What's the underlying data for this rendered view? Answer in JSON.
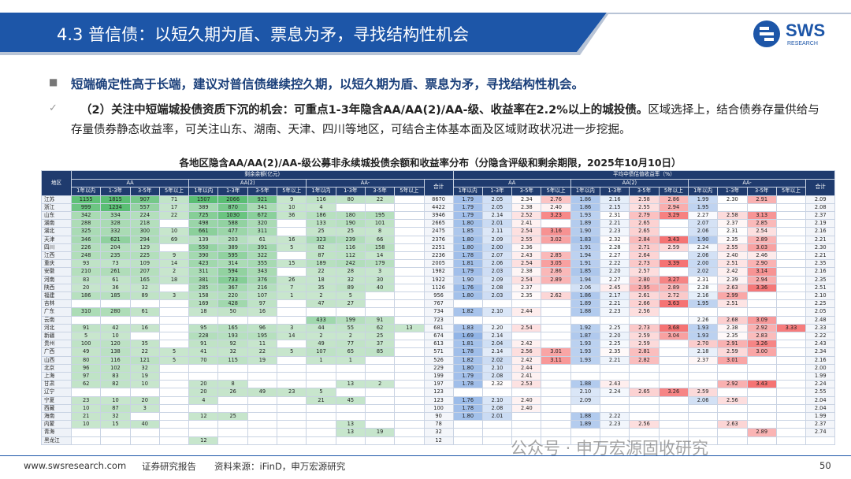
{
  "header": {
    "title": "4.3 普信债：以短久期为盾、票息为矛，寻找结构性机会",
    "logo": "SWS",
    "logo_sub": "RESEARCH"
  },
  "bullets": {
    "main": "短端确定性高于长端，建议对普信债继续控久期，以短久期为盾、票息为矛，寻找结构性机会。",
    "detail_bold": "（2）关注中短端城投债资质下沉的机会：可重点1-3年隐含AA/AA(2)/AA-级、收益率在2.2%以上的城投债。",
    "detail": "区域选择上，结合债券存量供给与存量债券静态收益率，可关注山东、湖南、天津、四川等地区，可结合主体基本面及区域财政状况进一步挖掘。"
  },
  "table": {
    "title": "各地区隐含AA/AA(2)/AA-级公募非永续城投债余额和收益率分布（分隐含评级和剩余期限，2025年10月10日）",
    "region_header": "地区",
    "balance_header": "剩余余额(亿元)",
    "yield_header": "平均中债估值收益率（%）",
    "total_header": "合计",
    "groups": [
      "AA",
      "AA(2)",
      "AA-"
    ],
    "terms": [
      "1年以内",
      "1-3年",
      "3-5年",
      "5年以上"
    ],
    "rows": [
      [
        "江苏",
        "1155",
        "1815",
        "907",
        "71",
        "1507",
        "2066",
        "921",
        "9",
        "116",
        "80",
        "22",
        null,
        "8670",
        "1.79",
        "2.05",
        "2.34",
        "2.76",
        "1.86",
        "2.16",
        "2.58",
        "2.86",
        "1.99",
        "2.30",
        "2.91",
        null,
        "2.09"
      ],
      [
        "浙江",
        "999",
        "1234",
        "557",
        "17",
        "389",
        "870",
        "341",
        "10",
        "4",
        null,
        null,
        null,
        "4422",
        "1.79",
        "2.05",
        "2.38",
        "2.40",
        "1.86",
        "2.15",
        "2.55",
        "2.94",
        "1.95",
        null,
        null,
        null,
        "2.08"
      ],
      [
        "山东",
        "342",
        "334",
        "224",
        "22",
        "725",
        "1030",
        "672",
        "36",
        "186",
        "180",
        "195",
        null,
        "3946",
        "1.79",
        "2.14",
        "2.52",
        "3.23",
        "1.93",
        "2.31",
        "2.79",
        "3.29",
        "2.27",
        "2.58",
        "3.13",
        null,
        "2.37"
      ],
      [
        "湖南",
        "288",
        "328",
        "218",
        null,
        "498",
        "588",
        "320",
        null,
        "133",
        "190",
        "101",
        null,
        "2665",
        "1.80",
        "2.01",
        "2.41",
        null,
        "1.89",
        "2.21",
        "2.65",
        null,
        "2.07",
        "2.37",
        "2.85",
        null,
        "2.19"
      ],
      [
        "湖北",
        "325",
        "332",
        "300",
        "10",
        "661",
        "477",
        "311",
        null,
        "25",
        "25",
        "8",
        null,
        "2475",
        "1.85",
        "2.11",
        "2.54",
        "3.16",
        "1.90",
        "2.23",
        "2.65",
        null,
        "2.06",
        "2.31",
        "2.54",
        null,
        "2.16"
      ],
      [
        "天津",
        "346",
        "621",
        "294",
        "69",
        "139",
        "203",
        "61",
        "16",
        "323",
        "239",
        "66",
        null,
        "2376",
        "1.80",
        "2.09",
        "2.55",
        "3.02",
        "1.83",
        "2.32",
        "2.84",
        "3.43",
        "1.90",
        "2.35",
        "2.89",
        null,
        "2.21"
      ],
      [
        "四川",
        "226",
        "204",
        "129",
        null,
        "550",
        "389",
        "391",
        "5",
        "82",
        "116",
        "158",
        null,
        "2251",
        "1.80",
        "2.00",
        "2.36",
        null,
        "1.91",
        "2.28",
        "2.71",
        "2.59",
        "2.24",
        "2.55",
        "3.03",
        null,
        "2.30"
      ],
      [
        "江西",
        "248",
        "235",
        "225",
        "9",
        "390",
        "595",
        "322",
        null,
        "87",
        "112",
        "14",
        null,
        "2236",
        "1.78",
        "2.07",
        "2.43",
        "2.85",
        "1.94",
        "2.27",
        "2.64",
        null,
        "2.06",
        "2.40",
        "2.46",
        null,
        "2.21"
      ],
      [
        "重庆",
        "93",
        "73",
        "109",
        "14",
        "423",
        "314",
        "355",
        "15",
        "189",
        "242",
        "179",
        null,
        "2005",
        "1.81",
        "2.06",
        "2.54",
        "3.05",
        "1.91",
        "2.22",
        "2.73",
        "3.39",
        "2.00",
        "2.51",
        "2.90",
        null,
        "2.35"
      ],
      [
        "安徽",
        "210",
        "261",
        "207",
        "2",
        "311",
        "594",
        "343",
        null,
        "22",
        "28",
        "3",
        null,
        "1982",
        "1.79",
        "2.03",
        "2.38",
        "2.86",
        "1.85",
        "2.20",
        "2.57",
        null,
        "2.02",
        "2.42",
        "3.14",
        null,
        "2.16"
      ],
      [
        "河南",
        "83",
        "61",
        "165",
        "18",
        "381",
        "733",
        "376",
        "26",
        "18",
        "32",
        "30",
        null,
        "1922",
        "1.90",
        "2.09",
        "2.54",
        "2.89",
        "1.94",
        "2.27",
        "2.80",
        "3.27",
        "2.31",
        "2.39",
        "2.94",
        null,
        "2.35"
      ],
      [
        "陕西",
        "20",
        "36",
        "32",
        null,
        "285",
        "367",
        "216",
        "7",
        "35",
        "89",
        "40",
        null,
        "1126",
        "1.76",
        "2.08",
        "2.37",
        null,
        "2.06",
        "2.45",
        "2.95",
        "2.89",
        "2.28",
        "2.63",
        "3.36",
        null,
        "2.51"
      ],
      [
        "福建",
        "186",
        "185",
        "89",
        "3",
        "158",
        "220",
        "107",
        "1",
        "2",
        "5",
        null,
        null,
        "956",
        "1.80",
        "2.03",
        "2.35",
        "2.62",
        "1.86",
        "2.17",
        "2.61",
        "2.72",
        "2.16",
        "2.99",
        null,
        null,
        "2.10"
      ],
      [
        "吉林",
        null,
        null,
        null,
        null,
        "169",
        "428",
        "97",
        null,
        "47",
        "27",
        null,
        null,
        "767",
        null,
        null,
        null,
        null,
        "1.89",
        "2.21",
        "2.66",
        "3.63",
        "1.95",
        "2.51",
        null,
        null,
        "2.25"
      ],
      [
        "广东",
        "310",
        "280",
        "61",
        null,
        "18",
        "50",
        "16",
        null,
        null,
        null,
        null,
        null,
        "734",
        "1.82",
        "2.10",
        "2.44",
        null,
        "1.88",
        "2.23",
        "2.56",
        null,
        null,
        null,
        null,
        null,
        "2.05"
      ],
      [
        "云南",
        null,
        null,
        null,
        null,
        null,
        null,
        null,
        null,
        "433",
        "199",
        "91",
        null,
        "723",
        null,
        null,
        null,
        null,
        null,
        null,
        null,
        null,
        "2.26",
        "2.68",
        "3.09",
        null,
        "2.48"
      ],
      [
        "河北",
        "91",
        "42",
        "16",
        null,
        "95",
        "165",
        "96",
        "3",
        "44",
        "55",
        "62",
        "13",
        "681",
        "1.83",
        "2.20",
        "2.54",
        null,
        "1.92",
        "2.25",
        "2.73",
        "3.68",
        "1.93",
        "2.38",
        "2.92",
        "3.33",
        "2.33"
      ],
      [
        "新疆",
        "5",
        "10",
        null,
        null,
        "228",
        "193",
        "195",
        "14",
        "2",
        "2",
        "25",
        null,
        "674",
        "1.69",
        "2.14",
        null,
        null,
        "1.87",
        "2.20",
        "2.59",
        "3.04",
        "1.93",
        "2.35",
        "2.83",
        null,
        "2.22"
      ],
      [
        "贵州",
        "100",
        "120",
        "35",
        null,
        "91",
        "92",
        "11",
        null,
        "49",
        "77",
        "37",
        null,
        "613",
        "1.81",
        "2.04",
        "2.42",
        null,
        "1.93",
        "2.25",
        "2.59",
        null,
        "2.70",
        "2.91",
        "3.26",
        null,
        "2.43"
      ],
      [
        "广西",
        "49",
        "138",
        "22",
        "5",
        "41",
        "32",
        "22",
        "5",
        "107",
        "65",
        "85",
        null,
        "571",
        "1.78",
        "2.14",
        "2.56",
        "3.01",
        "1.93",
        "2.35",
        "2.81",
        null,
        "2.18",
        "2.59",
        "3.00",
        null,
        "2.34"
      ],
      [
        "山西",
        "80",
        "116",
        "121",
        "5",
        "70",
        "115",
        "19",
        null,
        "1",
        "1",
        null,
        null,
        "526",
        "1.82",
        "2.02",
        "2.42",
        "3.11",
        "1.93",
        "2.21",
        "2.82",
        null,
        "2.37",
        "3.01",
        null,
        null,
        "2.16"
      ],
      [
        "北京",
        "96",
        "102",
        "32",
        null,
        null,
        null,
        null,
        null,
        null,
        null,
        null,
        null,
        "229",
        "1.80",
        "2.10",
        "2.44",
        null,
        null,
        null,
        null,
        null,
        null,
        null,
        null,
        null,
        "2.00"
      ],
      [
        "上海",
        "97",
        "83",
        "19",
        null,
        null,
        null,
        null,
        null,
        null,
        null,
        null,
        null,
        "199",
        "1.79",
        "2.08",
        "2.41",
        null,
        null,
        null,
        null,
        null,
        null,
        null,
        null,
        null,
        "1.99"
      ],
      [
        "甘肃",
        "62",
        "82",
        "10",
        null,
        "20",
        "8",
        null,
        null,
        null,
        "13",
        "2",
        null,
        "197",
        "1.78",
        "2.32",
        "2.53",
        null,
        "1.88",
        "2.43",
        null,
        null,
        null,
        "2.92",
        "3.43",
        null,
        "2.24"
      ],
      [
        "辽宁",
        null,
        null,
        null,
        null,
        "20",
        "26",
        "49",
        "23",
        "5",
        null,
        null,
        null,
        "123",
        null,
        null,
        null,
        null,
        "2.10",
        "2.24",
        "2.65",
        "3.26",
        "2.59",
        null,
        null,
        null,
        "2.55"
      ],
      [
        "宁夏",
        "23",
        "10",
        "20",
        null,
        "4",
        null,
        null,
        null,
        "21",
        "45",
        null,
        null,
        "123",
        "1.76",
        "2.10",
        "2.40",
        null,
        "2.09",
        null,
        null,
        null,
        "2.06",
        "2.56",
        null,
        null,
        "2.04"
      ],
      [
        "西藏",
        "10",
        "87",
        "3",
        null,
        null,
        null,
        null,
        null,
        null,
        null,
        null,
        null,
        "100",
        "1.78",
        "2.08",
        "2.40",
        null,
        null,
        null,
        null,
        null,
        null,
        null,
        null,
        null,
        "2.04"
      ],
      [
        "海南",
        "21",
        "32",
        null,
        null,
        "12",
        "25",
        null,
        null,
        null,
        null,
        null,
        null,
        "90",
        "1.80",
        "2.01",
        null,
        null,
        "1.88",
        "2.22",
        null,
        null,
        null,
        null,
        null,
        null,
        "1.99"
      ],
      [
        "内蒙",
        "10",
        "15",
        "40",
        null,
        null,
        null,
        null,
        null,
        null,
        "13",
        null,
        null,
        "78",
        null,
        null,
        null,
        null,
        "1.89",
        "2.23",
        "2.56",
        null,
        null,
        "2.63",
        null,
        null,
        "2.37"
      ],
      [
        "青海",
        null,
        null,
        null,
        null,
        null,
        null,
        null,
        null,
        null,
        "13",
        "19",
        null,
        "32",
        null,
        null,
        null,
        null,
        null,
        null,
        null,
        null,
        null,
        null,
        "2.89",
        null,
        "2.74"
      ],
      [
        "黑龙江",
        null,
        null,
        null,
        null,
        "12",
        null,
        null,
        null,
        null,
        null,
        null,
        null,
        "12",
        null,
        null,
        null,
        null,
        null,
        null,
        null,
        null,
        null,
        null,
        null,
        null,
        null
      ]
    ]
  },
  "watermark": "公众号 · 申万宏源固收研究",
  "footer": {
    "site": "www.swsresearch.com",
    "type": "证券研究报告",
    "source": "资料来源：iFinD，申万宏源研究",
    "page": "50"
  }
}
